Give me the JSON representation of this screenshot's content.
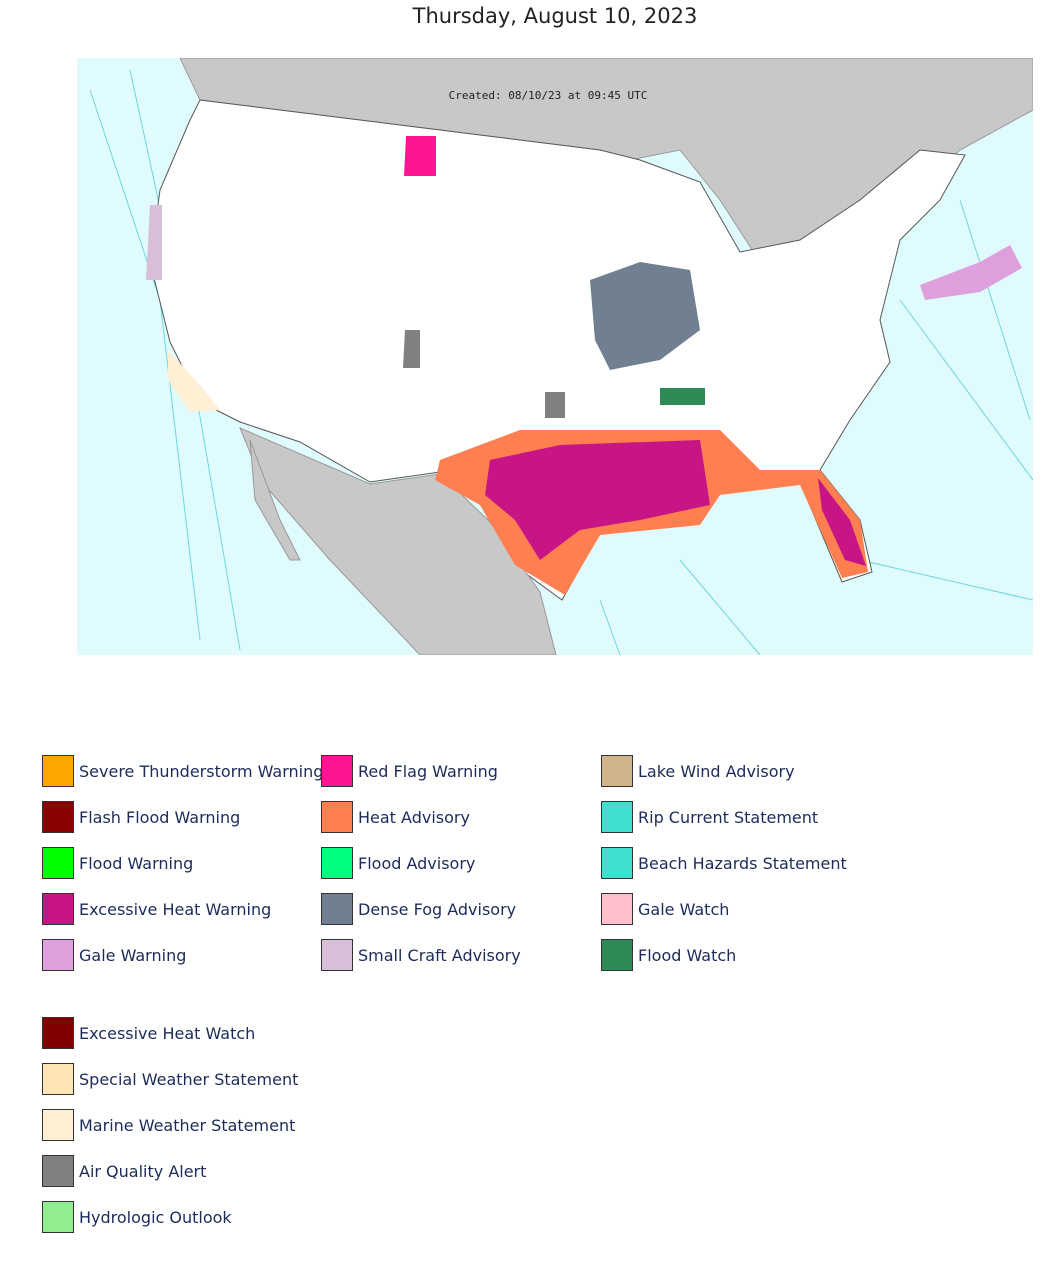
{
  "title": "Thursday, August 10, 2023",
  "map": {
    "created": "Created: 08/10/23 at 09:45 UTC"
  },
  "legend": [
    {
      "label": "Severe Thunderstorm Warning",
      "color": "#FFA500"
    },
    {
      "label": "Flash Flood Warning",
      "color": "#8B0000"
    },
    {
      "label": "Flood Warning",
      "color": "#00FF00"
    },
    {
      "label": "Excessive Heat Warning",
      "color": "#C71585"
    },
    {
      "label": "Gale Warning",
      "color": "#DDA0DD"
    },
    {
      "label": "Red Flag Warning",
      "color": "#FF1493"
    },
    {
      "label": "Heat Advisory",
      "color": "#FF7F50"
    },
    {
      "label": "Flood Advisory",
      "color": "#00FF7F"
    },
    {
      "label": "Dense Fog Advisory",
      "color": "#708090"
    },
    {
      "label": "Small Craft Advisory",
      "color": "#D8BFD8"
    },
    {
      "label": "Lake Wind Advisory",
      "color": "#D2B48C"
    },
    {
      "label": "Rip Current Statement",
      "color": "#40E0D0"
    },
    {
      "label": "Beach Hazards Statement",
      "color": "#40E0D0"
    },
    {
      "label": "Gale Watch",
      "color": "#FFC0CB"
    },
    {
      "label": "Flood Watch",
      "color": "#2E8B57"
    }
  ],
  "legend_extra": [
    {
      "label": "Excessive Heat Watch",
      "color": "#800000"
    },
    {
      "label": "Special Weather Statement",
      "color": "#FFE4B5"
    },
    {
      "label": "Marine Weather Statement",
      "color": "#FFEFD5"
    },
    {
      "label": "Air Quality Alert",
      "color": "#808080"
    },
    {
      "label": "Hydrologic Outlook",
      "color": "#90EE90"
    }
  ]
}
